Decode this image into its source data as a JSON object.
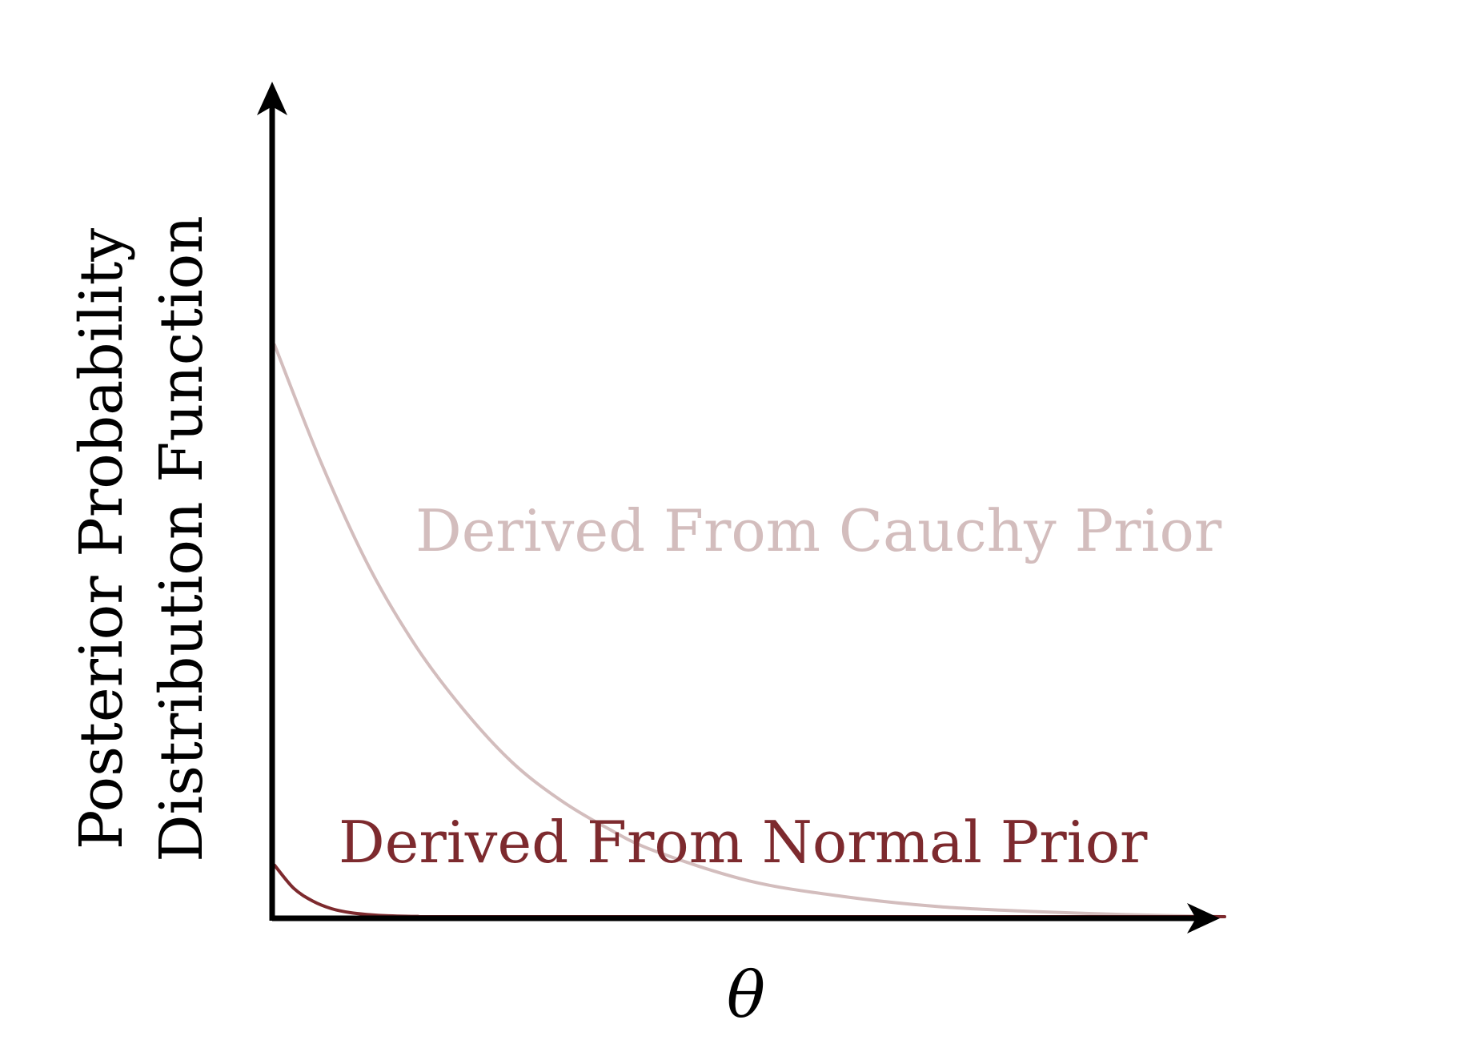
{
  "chart_data": {
    "type": "line",
    "xlabel": "θ",
    "ylabel": [
      "Posterior Probability",
      "Distribution Function"
    ],
    "xlim": [
      0,
      5
    ],
    "ylim": [
      0,
      2.8
    ],
    "grid": false,
    "ticks": "none",
    "series": [
      {
        "name": "Derived From Cauchy Prior",
        "color": "#d3bdbd",
        "x": [
          0,
          0.25,
          0.5,
          0.75,
          1.0,
          1.25,
          1.5,
          1.75,
          2.0,
          2.5,
          3.0,
          3.5,
          4.0,
          4.5,
          5.0
        ],
        "values": [
          2.0,
          1.58,
          1.22,
          0.94,
          0.72,
          0.54,
          0.41,
          0.31,
          0.23,
          0.125,
          0.07,
          0.035,
          0.018,
          0.007,
          0.0
        ]
      },
      {
        "name": "Derived From Normal Prior",
        "color": "#7d2a2e",
        "x": [
          0,
          0.1,
          0.2,
          0.3,
          0.4,
          0.5,
          0.6,
          0.75,
          1.0,
          5.0
        ],
        "values": [
          0.18,
          0.1,
          0.055,
          0.028,
          0.014,
          0.007,
          0.003,
          0.001,
          0.0,
          0.0
        ]
      }
    ]
  }
}
